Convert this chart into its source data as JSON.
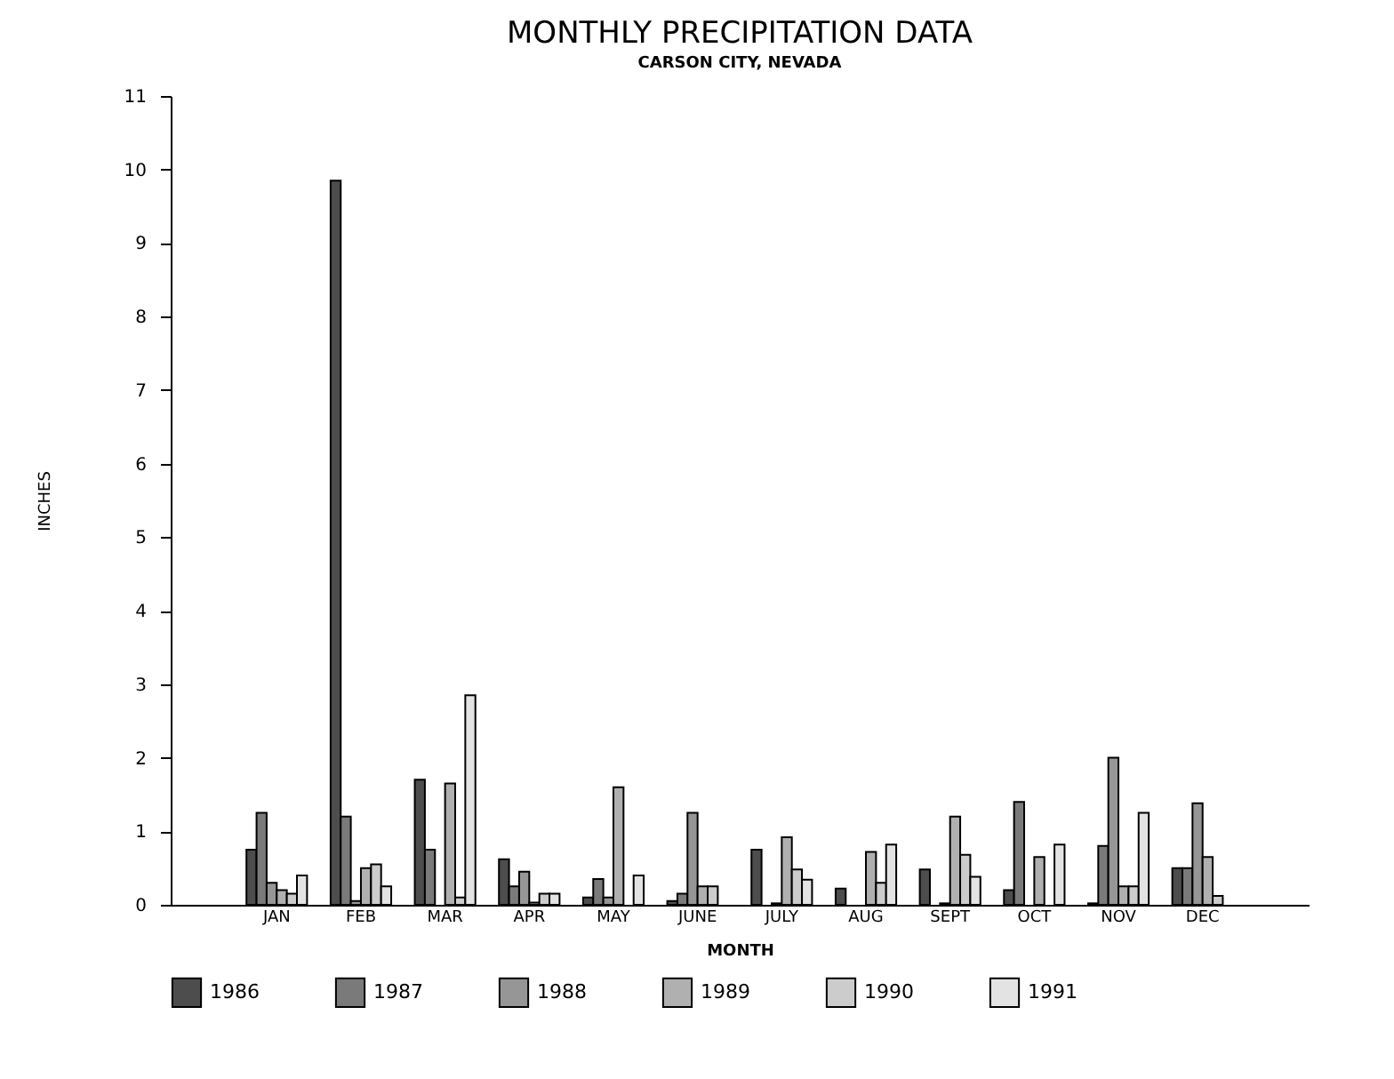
{
  "chart_data": {
    "type": "bar",
    "title": "MONTHLY PRECIPITATION DATA",
    "subtitle": "CARSON CITY, NEVADA",
    "xlabel": "MONTH",
    "ylabel": "INCHES",
    "categories": [
      "JAN",
      "FEB",
      "MAR",
      "APR",
      "MAY",
      "JUNE",
      "JULY",
      "AUG",
      "SEPT",
      "OCT",
      "NOV",
      "DEC"
    ],
    "series": [
      {
        "name": "1986",
        "color": "#4d4d4d",
        "values": [
          0.75,
          9.85,
          1.7,
          0.62,
          0.1,
          0.05,
          0.75,
          0.22,
          0.48,
          0.2,
          0.02,
          0.5
        ]
      },
      {
        "name": "1987",
        "color": "#7a7a7a",
        "values": [
          1.25,
          1.2,
          0.75,
          0.25,
          0.35,
          0.15,
          null,
          null,
          null,
          1.4,
          0.8,
          0.5
        ]
      },
      {
        "name": "1988",
        "color": "#969696",
        "values": [
          0.3,
          0.05,
          null,
          0.45,
          0.1,
          1.25,
          0.02,
          null,
          0.02,
          null,
          2.0,
          1.38
        ]
      },
      {
        "name": "1989",
        "color": "#b0b0b0",
        "values": [
          0.2,
          0.5,
          1.65,
          0.03,
          1.6,
          0.25,
          0.92,
          0.72,
          1.2,
          0.65,
          0.25,
          0.65
        ]
      },
      {
        "name": "1990",
        "color": "#cccccc",
        "values": [
          0.15,
          0.55,
          0.1,
          0.15,
          null,
          0.25,
          0.48,
          0.3,
          0.68,
          null,
          0.25,
          0.12
        ]
      },
      {
        "name": "1991",
        "color": "#e3e3e3",
        "values": [
          0.4,
          0.25,
          2.85,
          0.15,
          0.4,
          null,
          0.34,
          0.82,
          0.38,
          0.82,
          1.25,
          null
        ]
      }
    ],
    "ylim": [
      0,
      11
    ],
    "yticks": [
      0,
      1,
      2,
      3,
      4,
      5,
      6,
      7,
      8,
      9,
      10,
      11
    ],
    "grid": false,
    "legend": "bottom"
  }
}
